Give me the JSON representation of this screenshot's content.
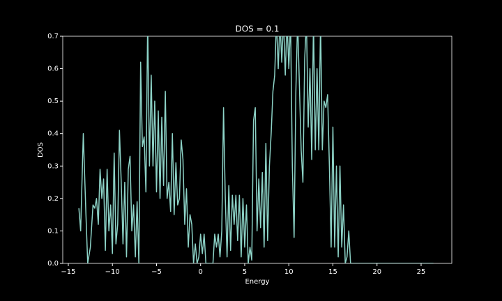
{
  "chart_data": {
    "type": "line",
    "title": "DOS = 0.1",
    "x_label": "Energy",
    "y_label": "DOS",
    "color": "#8dd3c7",
    "x": [
      -13.8,
      -13.6,
      -13.3,
      -13.0,
      -12.8,
      -12.5,
      -12.2,
      -12.0,
      -11.8,
      -11.6,
      -11.4,
      -11.2,
      -11.0,
      -10.8,
      -10.6,
      -10.4,
      -10.2,
      -10.0,
      -9.8,
      -9.6,
      -9.4,
      -9.2,
      -9.0,
      -8.8,
      -8.6,
      -8.4,
      -8.2,
      -8.0,
      -7.8,
      -7.6,
      -7.4,
      -7.2,
      -7.0,
      -6.8,
      -6.6,
      -6.4,
      -6.2,
      -6.0,
      -5.8,
      -5.6,
      -5.4,
      -5.2,
      -5.0,
      -4.8,
      -4.6,
      -4.4,
      -4.2,
      -4.0,
      -3.8,
      -3.6,
      -3.4,
      -3.2,
      -3.0,
      -2.8,
      -2.6,
      -2.4,
      -2.2,
      -2.0,
      -1.8,
      -1.6,
      -1.4,
      -1.2,
      -1.0,
      -0.8,
      -0.6,
      -0.4,
      -0.2,
      0.0,
      0.2,
      0.4,
      0.6,
      0.8,
      1.0,
      1.4,
      1.6,
      1.8,
      2.0,
      2.2,
      2.4,
      2.6,
      2.8,
      3.0,
      3.2,
      3.4,
      3.6,
      3.8,
      4.0,
      4.2,
      4.4,
      4.6,
      4.8,
      5.0,
      5.2,
      5.4,
      5.6,
      5.8,
      6.0,
      6.2,
      6.4,
      6.6,
      6.8,
      7.0,
      7.2,
      7.4,
      7.6,
      7.8,
      8.0,
      8.2,
      8.4,
      8.6,
      8.8,
      9.0,
      9.2,
      9.4,
      9.6,
      9.8,
      10.0,
      10.2,
      10.4,
      10.6,
      10.8,
      11.0,
      11.2,
      11.4,
      11.6,
      11.8,
      12.0,
      12.2,
      12.4,
      12.6,
      12.8,
      13.0,
      13.2,
      13.4,
      13.6,
      13.8,
      14.0,
      14.2,
      14.4,
      14.6,
      14.8,
      15.0,
      15.2,
      15.4,
      15.6,
      15.8,
      16.0,
      16.2,
      16.4,
      16.6,
      16.8,
      17.0,
      17.4,
      20.0,
      26.4
    ],
    "values": [
      0.17,
      0.1,
      0.4,
      0.15,
      0.0,
      0.05,
      0.18,
      0.17,
      0.2,
      0.12,
      0.29,
      0.2,
      0.26,
      0.04,
      0.29,
      0.1,
      0.18,
      0.03,
      0.34,
      0.06,
      0.12,
      0.41,
      0.25,
      0.06,
      0.25,
      0.02,
      0.29,
      0.33,
      0.1,
      0.18,
      0.02,
      0.19,
      0.0,
      0.62,
      0.36,
      0.39,
      0.22,
      0.75,
      0.3,
      0.58,
      0.3,
      0.5,
      0.22,
      0.47,
      0.2,
      0.45,
      0.24,
      0.53,
      0.2,
      0.25,
      0.16,
      0.4,
      0.15,
      0.31,
      0.18,
      0.2,
      0.38,
      0.32,
      0.12,
      0.23,
      0.05,
      0.15,
      0.12,
      0.0,
      0.06,
      0.0,
      0.02,
      0.09,
      0.03,
      0.09,
      0.0,
      0.0,
      0.0,
      0.0,
      0.09,
      0.05,
      0.09,
      0.02,
      0.1,
      0.48,
      0.2,
      0.02,
      0.24,
      0.04,
      0.21,
      0.12,
      0.21,
      0.07,
      0.21,
      0.02,
      0.2,
      0.05,
      0.18,
      0.0,
      0.05,
      0.01,
      0.44,
      0.48,
      0.1,
      0.26,
      0.11,
      0.28,
      0.05,
      0.37,
      0.07,
      0.3,
      0.4,
      0.53,
      0.58,
      0.75,
      0.6,
      0.75,
      0.62,
      0.75,
      0.58,
      0.75,
      0.6,
      0.75,
      0.3,
      0.08,
      0.53,
      0.75,
      0.55,
      0.35,
      0.25,
      0.63,
      0.75,
      0.42,
      0.6,
      0.32,
      0.75,
      0.35,
      0.6,
      0.35,
      0.75,
      0.35,
      0.5,
      0.48,
      0.52,
      0.3,
      0.05,
      0.42,
      0.05,
      0.3,
      0.02,
      0.3,
      0.05,
      0.18,
      0.0,
      0.02,
      0.1,
      0.0,
      0.0,
      0.0,
      0.0
    ],
    "xlim": [
      -15.63,
      28.48
    ],
    "ylim": [
      0,
      0.7
    ],
    "xticks": [
      {
        "value": -15,
        "label": "−15"
      },
      {
        "value": -10,
        "label": "−10"
      },
      {
        "value": -5,
        "label": "−5"
      },
      0,
      5,
      10,
      15,
      20,
      25
    ],
    "yticks": [
      {
        "value": 0,
        "label": "0.0"
      },
      0.1,
      0.2,
      0.3,
      0.4,
      0.5,
      0.6,
      0.7
    ]
  }
}
